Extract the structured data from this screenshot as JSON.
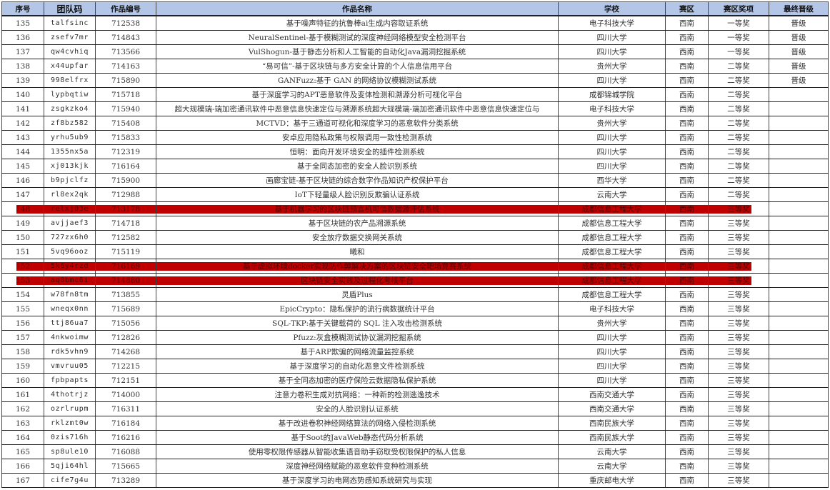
{
  "colors": {
    "header_bg": "#b4c6e7",
    "highlight": "#c00000"
  },
  "headers": [
    "序号",
    "团队码",
    "作品编号",
    "作品名称",
    "学校",
    "赛区",
    "赛区奖项",
    "最终晋级"
  ],
  "rows": [
    {
      "no": "135",
      "team": "talfsinc",
      "id": "712538",
      "name": "基于噪声特征的抗鲁棒ai生成内容取证系统",
      "school": "电子科技大学",
      "region": "西南",
      "award": "一等奖",
      "final": "晋级",
      "highlight": false
    },
    {
      "no": "136",
      "team": "zsefv7mr",
      "id": "714843",
      "name": "NeuralSentinel-基于模糊测试的深度神经网络模型安全检测平台",
      "school": "四川大学",
      "region": "西南",
      "award": "一等奖",
      "final": "晋级",
      "highlight": false
    },
    {
      "no": "137",
      "team": "qw4cvhiq",
      "id": "713566",
      "name": "VulShogun-基于静态分析和人工智能的自动化Java漏洞挖掘系统",
      "school": "四川大学",
      "region": "西南",
      "award": "一等奖",
      "final": "晋级",
      "highlight": false
    },
    {
      "no": "138",
      "team": "x44upfar",
      "id": "714163",
      "name": "“易可信”-基于区块链与多方安全计算的个人信息信用平台",
      "school": "贵州大学",
      "region": "西南",
      "award": "二等奖",
      "final": "晋级",
      "highlight": false
    },
    {
      "no": "139",
      "team": "998elfrx",
      "id": "715890",
      "name": "GANFuzz:基于 GAN 的网络协议模糊测试系统",
      "school": "四川大学",
      "region": "西南",
      "award": "二等奖",
      "final": "晋级",
      "highlight": false
    },
    {
      "no": "140",
      "team": "lypbqtiw",
      "id": "715718",
      "name": "基于深度学习的APT恶意软件及变体检测和溯源分析可视化平台",
      "school": "成都锦城学院",
      "region": "西南",
      "award": "二等奖",
      "final": "",
      "highlight": false
    },
    {
      "no": "141",
      "team": "zsgkzko4",
      "id": "715940",
      "name": "超大规模端-端加密通讯软件中恶意信息快速定位与溯源系统超大规模端-端加密通讯软件中恶意信息快速定位与",
      "school": "电子科技大学",
      "region": "西南",
      "award": "二等奖",
      "final": "",
      "highlight": false
    },
    {
      "no": "142",
      "team": "zf8bz582",
      "id": "715408",
      "name": "MCTVD：基于三通道可视化和深度学习的恶意软件分类系统",
      "school": "贵州大学",
      "region": "西南",
      "award": "二等奖",
      "final": "",
      "highlight": false
    },
    {
      "no": "143",
      "team": "yrhu5ub9",
      "id": "715833",
      "name": "安卓应用隐私政策与权限调用一致性检测系统",
      "school": "四川大学",
      "region": "西南",
      "award": "二等奖",
      "final": "",
      "highlight": false
    },
    {
      "no": "144",
      "team": "1355nx5a",
      "id": "712319",
      "name": "恒明：面向开发环境安全的插件检测系统",
      "school": "四川大学",
      "region": "西南",
      "award": "二等奖",
      "final": "",
      "highlight": false
    },
    {
      "no": "145",
      "team": "xj013kjk",
      "id": "716164",
      "name": "基于全同态加密的安全人脸识别系统",
      "school": "四川大学",
      "region": "西南",
      "award": "二等奖",
      "final": "",
      "highlight": false
    },
    {
      "no": "146",
      "team": "b9pjclfz",
      "id": "715900",
      "name": "画廊宝链-基于区块链的综合数字作品知识产权保护平台",
      "school": "西华大学",
      "region": "西南",
      "award": "二等奖",
      "final": "",
      "highlight": false
    },
    {
      "no": "147",
      "team": "rl8ex2qk",
      "id": "712988",
      "name": "IoT下轻量级人脸识别反欺骗认证系统",
      "school": "云南大学",
      "region": "西南",
      "award": "二等奖",
      "final": "",
      "highlight": false
    },
    {
      "no": "148",
      "team": "relxj03e",
      "id": "713178",
      "name": "基于机器学习的区块链预言机可信数据源评估系统",
      "school": "成都信息工程大学",
      "region": "西南",
      "award": "三等奖",
      "final": "",
      "highlight": true
    },
    {
      "no": "149",
      "team": "avjjaef3",
      "id": "714718",
      "name": "基于区块链的农产品溯源系统",
      "school": "成都信息工程大学",
      "region": "西南",
      "award": "三等奖",
      "final": "",
      "highlight": false
    },
    {
      "no": "150",
      "team": "727zx6h0",
      "id": "712582",
      "name": "安全放疗数据交换网关系统",
      "school": "成都信息工程大学",
      "region": "西南",
      "award": "三等奖",
      "final": "",
      "highlight": false
    },
    {
      "no": "151",
      "team": "5vq96ooz",
      "id": "715119",
      "name": "曦和",
      "school": "成都信息工程大学",
      "region": "西南",
      "award": "三等奖",
      "final": "",
      "highlight": false
    },
    {
      "no": "152",
      "team": "5k6y4rzd",
      "id": "716169",
      "name": "基于虚拟环境docker实现防作弊解决方案的区块链安全靶场竞赛系统",
      "school": "成都信息工程大学",
      "region": "西南",
      "award": "三等奖",
      "final": "",
      "highlight": true
    },
    {
      "no": "153",
      "team": "aq0bmc6i",
      "id": "714880",
      "name": "区块链安全实践及过程化考核平台",
      "school": "成都信息工程大学",
      "region": "西南",
      "award": "三等奖",
      "final": "",
      "highlight": true
    },
    {
      "no": "154",
      "team": "w78fn8tm",
      "id": "713855",
      "name": "灵盾Plus",
      "school": "成都信息工程大学",
      "region": "西南",
      "award": "三等奖",
      "final": "",
      "highlight": false
    },
    {
      "no": "155",
      "team": "wneqx0nn",
      "id": "715689",
      "name": "EpicCrypto：隐私保护的流行病数据统计平台",
      "school": "电子科技大学",
      "region": "西南",
      "award": "三等奖",
      "final": "",
      "highlight": false
    },
    {
      "no": "156",
      "team": "ttj86ua7",
      "id": "715056",
      "name": "SQL-TKP:基于关键载荷的 SQL 注入攻击检测系统",
      "school": "贵州大学",
      "region": "西南",
      "award": "三等奖",
      "final": "",
      "highlight": false
    },
    {
      "no": "157",
      "team": "4nkwoimw",
      "id": "712826",
      "name": "Pfuzz:灰盒模糊测试协议漏洞挖掘系统",
      "school": "四川大学",
      "region": "西南",
      "award": "三等奖",
      "final": "",
      "highlight": false
    },
    {
      "no": "158",
      "team": "rdk5vhn9",
      "id": "714268",
      "name": "基于ARP欺骗的网络流量监控系统",
      "school": "四川大学",
      "region": "西南",
      "award": "三等奖",
      "final": "",
      "highlight": false
    },
    {
      "no": "159",
      "team": "vmvruu05",
      "id": "712215",
      "name": "基于深度学习的自动化恶意文件检测系统",
      "school": "四川大学",
      "region": "西南",
      "award": "三等奖",
      "final": "",
      "highlight": false
    },
    {
      "no": "160",
      "team": "fpbpapts",
      "id": "712151",
      "name": "基于全同态加密的医疗保险云数据隐私保护系统",
      "school": "四川大学",
      "region": "西南",
      "award": "三等奖",
      "final": "",
      "highlight": false
    },
    {
      "no": "161",
      "team": "4thotrjz",
      "id": "714000",
      "name": "注意力卷积生成对抗网络：一种新的检测逃逸技术",
      "school": "西南交通大学",
      "region": "西南",
      "award": "三等奖",
      "final": "",
      "highlight": false
    },
    {
      "no": "162",
      "team": "ozrlrupm",
      "id": "716311",
      "name": "安全的人脸识别认证系统",
      "school": "西南交通大学",
      "region": "西南",
      "award": "三等奖",
      "final": "",
      "highlight": false
    },
    {
      "no": "163",
      "team": "rklzmt0w",
      "id": "716184",
      "name": "基于改进卷积神经网络算法的网络入侵检测系统",
      "school": "西南民族大学",
      "region": "西南",
      "award": "三等奖",
      "final": "",
      "highlight": false
    },
    {
      "no": "164",
      "team": "0zis716h",
      "id": "716216",
      "name": "基于Soot的JavaWeb静态代码分析系统",
      "school": "西南民族大学",
      "region": "西南",
      "award": "三等奖",
      "final": "",
      "highlight": false
    },
    {
      "no": "165",
      "team": "sp8ule10",
      "id": "716088",
      "name": "使用零权限传感器从智能收集语音助手窃取受权限保护的私人信息",
      "school": "云南大学",
      "region": "西南",
      "award": "三等奖",
      "final": "",
      "highlight": false
    },
    {
      "no": "166",
      "team": "5qji64hl",
      "id": "715665",
      "name": "深度神经网络赋能的恶意软件变种检测系统",
      "school": "云南大学",
      "region": "西南",
      "award": "三等奖",
      "final": "",
      "highlight": false
    },
    {
      "no": "167",
      "team": "cife7g4u",
      "id": "713289",
      "name": "基于深度学习的电网态势感知系统研究与实现",
      "school": "重庆邮电大学",
      "region": "西南",
      "award": "三等奖",
      "final": "",
      "highlight": false
    }
  ]
}
